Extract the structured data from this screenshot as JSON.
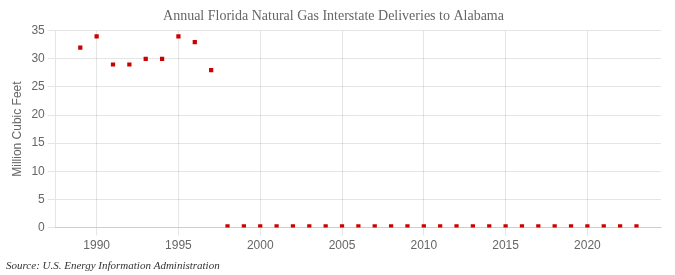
{
  "chart_data": {
    "type": "scatter",
    "title": "Annual Florida Natural Gas Interstate Deliveries to Alabama",
    "ylabel": "Million Cubic Feet",
    "source": "Source: U.S. Energy Information Administration",
    "x": [
      1989,
      1990,
      1991,
      1992,
      1993,
      1994,
      1995,
      1996,
      1997,
      1998,
      1999,
      2000,
      2001,
      2002,
      2003,
      2004,
      2005,
      2006,
      2007,
      2008,
      2009,
      2010,
      2011,
      2012,
      2013,
      2014,
      2015,
      2016,
      2017,
      2018,
      2019,
      2020,
      2021,
      2022,
      2023
    ],
    "values": [
      32,
      34,
      29,
      29,
      30,
      30,
      34,
      33,
      28,
      0.2,
      0.2,
      0.2,
      0.2,
      0.2,
      0.2,
      0.2,
      0.2,
      0.2,
      0.2,
      0.2,
      0.2,
      0.2,
      0.2,
      0.2,
      0.2,
      0.2,
      0.2,
      0.2,
      0.2,
      0.2,
      0.2,
      0.2,
      0.2,
      0.2,
      0.2
    ],
    "color": "#cc0000",
    "marker": "square",
    "xlim": [
      1987.5,
      2024.5
    ],
    "ylim": [
      0,
      35
    ],
    "xticks": [
      1990,
      1995,
      2000,
      2005,
      2010,
      2015,
      2020
    ],
    "yticks": [
      0,
      5,
      10,
      15,
      20,
      25,
      30,
      35
    ],
    "grid": true
  }
}
